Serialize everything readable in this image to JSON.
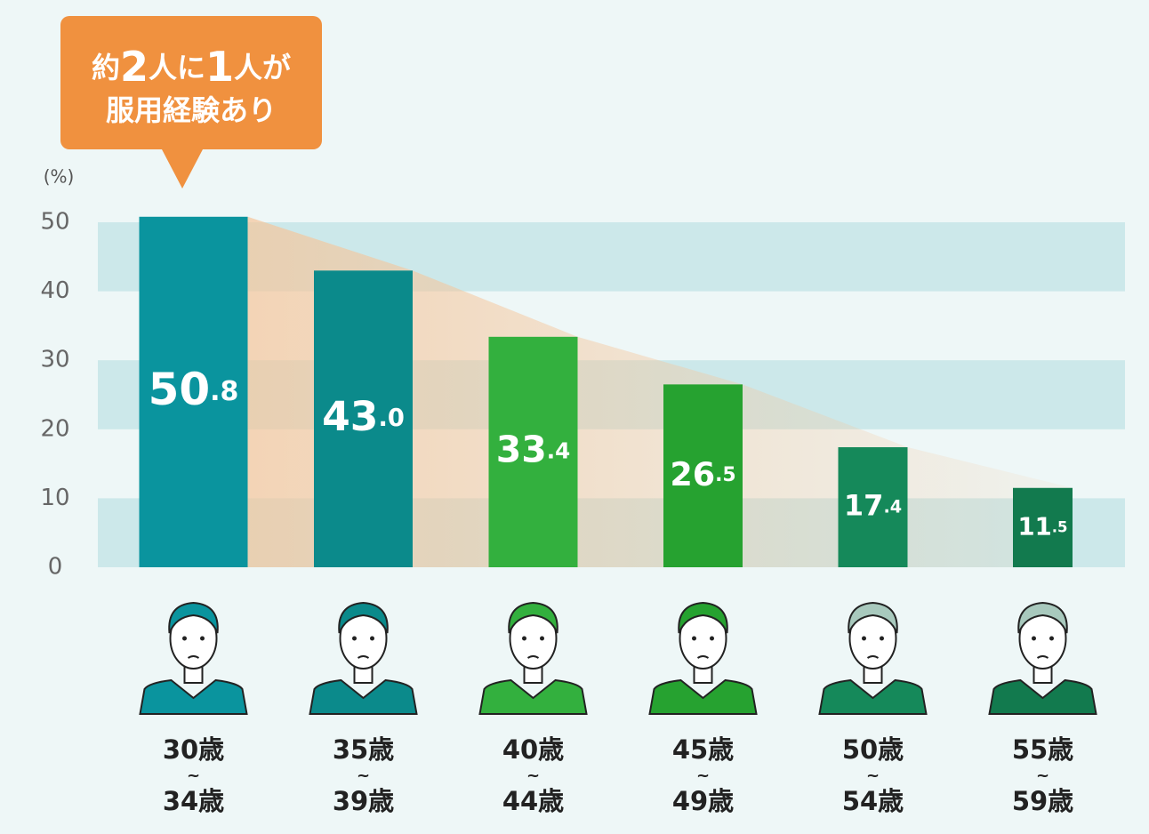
{
  "chart_data": {
    "type": "bar",
    "annotation": [
      "約2人に1人が",
      "服用経験あり"
    ],
    "y_label": "(%)",
    "categories": [
      [
        "30歳",
        "~",
        "34歳"
      ],
      [
        "35歳",
        "~",
        "39歳"
      ],
      [
        "40歳",
        "~",
        "44歳"
      ],
      [
        "45歳",
        "~",
        "49歳"
      ],
      [
        "50歳",
        "~",
        "54歳"
      ],
      [
        "55歳",
        "~",
        "59歳"
      ]
    ],
    "values": [
      50.8,
      43.0,
      33.4,
      26.5,
      17.4,
      11.5
    ],
    "value_labels": [
      "50.8",
      "43.0",
      "33.4",
      "26.5",
      "17.4",
      "11.5"
    ],
    "colors": [
      "#0a949e",
      "#0b8a8b",
      "#33b03e",
      "#26a230",
      "#15895a",
      "#127a4e"
    ],
    "ylim": [
      0,
      50
    ],
    "yticks": [
      0,
      10,
      20,
      30,
      40,
      50
    ],
    "grid": true
  }
}
